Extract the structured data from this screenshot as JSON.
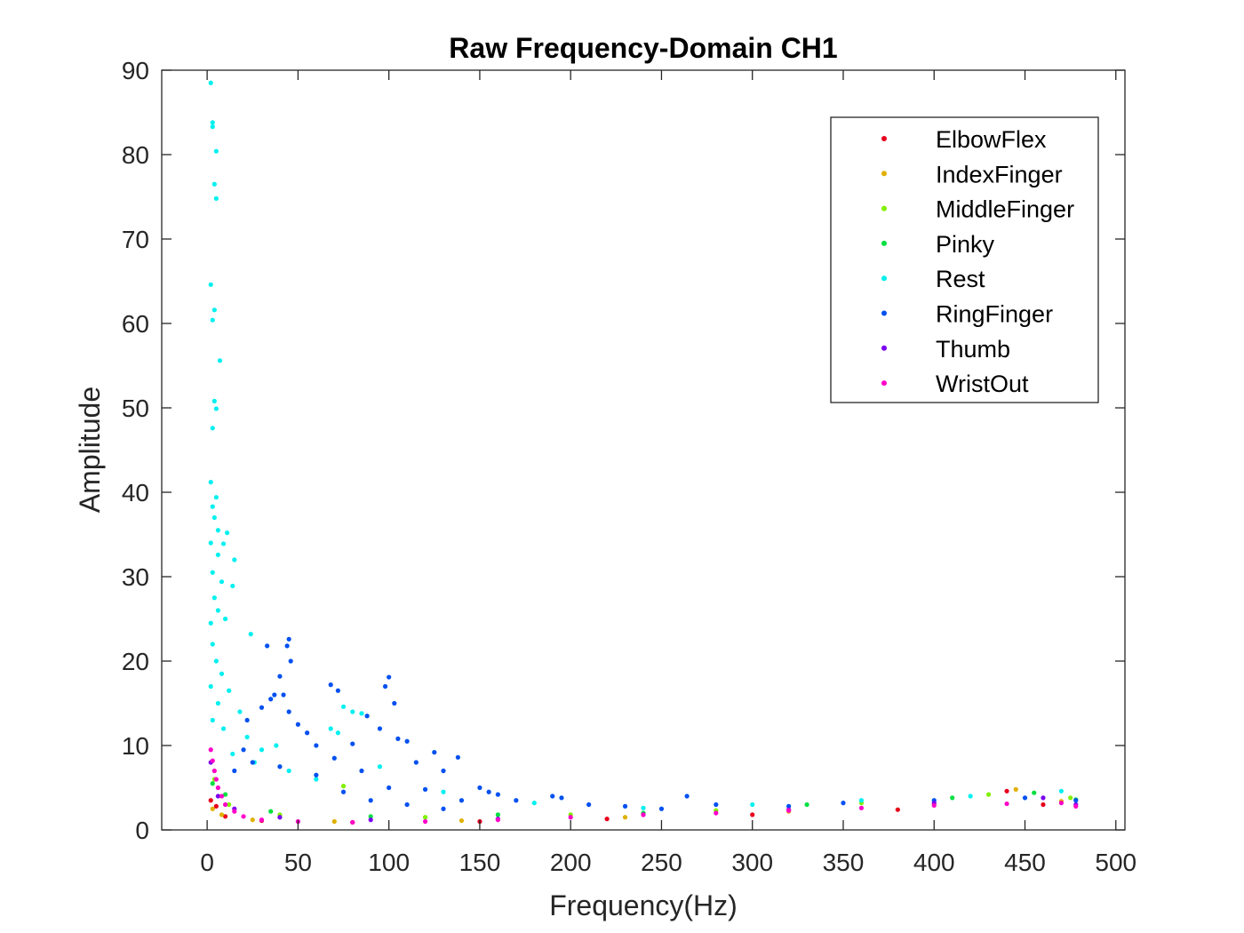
{
  "chart_data": {
    "type": "scatter",
    "title": "Raw Frequency-Domain CH1",
    "xlabel": "Frequency(Hz)",
    "ylabel": "Amplitude",
    "xlim": [
      -25,
      505
    ],
    "ylim": [
      0,
      90
    ],
    "xticks": [
      0,
      50,
      100,
      150,
      200,
      250,
      300,
      350,
      400,
      450,
      500
    ],
    "yticks": [
      0,
      10,
      20,
      30,
      40,
      50,
      60,
      70,
      80,
      90
    ],
    "xtick_labels": [
      "0",
      "50",
      "100",
      "150",
      "200",
      "250",
      "300",
      "350",
      "400",
      "450",
      "500"
    ],
    "ytick_labels": [
      "0",
      "10",
      "20",
      "30",
      "40",
      "50",
      "60",
      "70",
      "80",
      "90"
    ],
    "grid": false,
    "legend_position": "top-right",
    "series": [
      {
        "name": "ElbowFlex",
        "color": "#e8001c",
        "points": [
          [
            2,
            3.5
          ],
          [
            5,
            2.8
          ],
          [
            10,
            1.6
          ],
          [
            30,
            1.1
          ],
          [
            80,
            0.9
          ],
          [
            150,
            1.0
          ],
          [
            220,
            1.3
          ],
          [
            300,
            1.8
          ],
          [
            380,
            2.4
          ],
          [
            440,
            4.6
          ],
          [
            460,
            3.0
          ]
        ]
      },
      {
        "name": "IndexFinger",
        "color": "#e0b000",
        "points": [
          [
            3,
            2.5
          ],
          [
            8,
            1.8
          ],
          [
            25,
            1.2
          ],
          [
            70,
            1.0
          ],
          [
            140,
            1.1
          ],
          [
            230,
            1.5
          ],
          [
            320,
            2.2
          ],
          [
            400,
            3.0
          ],
          [
            445,
            4.8
          ],
          [
            470,
            3.4
          ]
        ]
      },
      {
        "name": "MiddleFinger",
        "color": "#80f000",
        "points": [
          [
            4,
            6.0
          ],
          [
            12,
            3.0
          ],
          [
            40,
            1.8
          ],
          [
            75,
            5.2
          ],
          [
            120,
            1.5
          ],
          [
            200,
            1.8
          ],
          [
            280,
            2.3
          ],
          [
            360,
            3.2
          ],
          [
            430,
            4.2
          ],
          [
            475,
            3.8
          ]
        ]
      },
      {
        "name": "Pinky",
        "color": "#00e040",
        "points": [
          [
            3,
            5.5
          ],
          [
            10,
            4.2
          ],
          [
            35,
            2.2
          ],
          [
            90,
            1.6
          ],
          [
            160,
            1.8
          ],
          [
            240,
            2.0
          ],
          [
            330,
            3.0
          ],
          [
            410,
            3.8
          ],
          [
            455,
            4.4
          ],
          [
            478,
            3.6
          ]
        ]
      },
      {
        "name": "Rest",
        "color": "#00f0f0",
        "points": [
          [
            2,
            88.5
          ],
          [
            3,
            83.8
          ],
          [
            3,
            83.3
          ],
          [
            5,
            80.4
          ],
          [
            4,
            76.5
          ],
          [
            5,
            74.8
          ],
          [
            2,
            64.6
          ],
          [
            4,
            61.6
          ],
          [
            3,
            60.4
          ],
          [
            7,
            55.6
          ],
          [
            4,
            50.8
          ],
          [
            5,
            49.9
          ],
          [
            3,
            47.6
          ],
          [
            2,
            41.2
          ],
          [
            5,
            39.4
          ],
          [
            3,
            38.3
          ],
          [
            4,
            37.0
          ],
          [
            6,
            35.5
          ],
          [
            11,
            35.2
          ],
          [
            2,
            34.0
          ],
          [
            9,
            33.9
          ],
          [
            6,
            32.6
          ],
          [
            15,
            32.0
          ],
          [
            3,
            30.5
          ],
          [
            8,
            29.4
          ],
          [
            14,
            28.9
          ],
          [
            4,
            27.5
          ],
          [
            6,
            26.0
          ],
          [
            2,
            24.5
          ],
          [
            10,
            25.0
          ],
          [
            3,
            22.0
          ],
          [
            5,
            20.0
          ],
          [
            8,
            18.5
          ],
          [
            2,
            17.0
          ],
          [
            12,
            16.5
          ],
          [
            6,
            15.0
          ],
          [
            18,
            14.0
          ],
          [
            3,
            13.0
          ],
          [
            9,
            12.0
          ],
          [
            24,
            23.2
          ],
          [
            22,
            11.0
          ],
          [
            30,
            9.5
          ],
          [
            38,
            10.0
          ],
          [
            14,
            9.0
          ],
          [
            26,
            8.0
          ],
          [
            45,
            7.0
          ],
          [
            60,
            6.0
          ],
          [
            68,
            12.0
          ],
          [
            72,
            11.5
          ],
          [
            75,
            14.6
          ],
          [
            80,
            14.0
          ],
          [
            85,
            13.8
          ],
          [
            95,
            7.5
          ],
          [
            130,
            4.5
          ],
          [
            180,
            3.2
          ],
          [
            240,
            2.6
          ],
          [
            300,
            3.0
          ],
          [
            360,
            3.5
          ],
          [
            420,
            4.0
          ],
          [
            470,
            4.6
          ]
        ]
      },
      {
        "name": "RingFinger",
        "color": "#0050f0",
        "points": [
          [
            45,
            22.6
          ],
          [
            44,
            21.8
          ],
          [
            33,
            21.8
          ],
          [
            46,
            20.0
          ],
          [
            40,
            18.2
          ],
          [
            68,
            17.2
          ],
          [
            72,
            16.5
          ],
          [
            100,
            18.1
          ],
          [
            98,
            17.0
          ],
          [
            37,
            16.0
          ],
          [
            42,
            16.0
          ],
          [
            35,
            15.5
          ],
          [
            103,
            15.0
          ],
          [
            30,
            14.5
          ],
          [
            45,
            14.0
          ],
          [
            88,
            13.5
          ],
          [
            22,
            13.0
          ],
          [
            50,
            12.5
          ],
          [
            95,
            12.0
          ],
          [
            105,
            10.8
          ],
          [
            110,
            10.5
          ],
          [
            80,
            10.2
          ],
          [
            125,
            9.2
          ],
          [
            55,
            11.5
          ],
          [
            60,
            10.0
          ],
          [
            138,
            8.6
          ],
          [
            115,
            8.0
          ],
          [
            70,
            8.5
          ],
          [
            85,
            7.0
          ],
          [
            130,
            7.0
          ],
          [
            20,
            9.5
          ],
          [
            25,
            8.0
          ],
          [
            15,
            7.0
          ],
          [
            150,
            5.0
          ],
          [
            155,
            4.5
          ],
          [
            160,
            4.2
          ],
          [
            170,
            3.5
          ],
          [
            190,
            4.0
          ],
          [
            195,
            3.8
          ],
          [
            210,
            3.0
          ],
          [
            230,
            2.8
          ],
          [
            264,
            4.0
          ],
          [
            250,
            2.5
          ],
          [
            280,
            3.0
          ],
          [
            320,
            2.8
          ],
          [
            350,
            3.2
          ],
          [
            400,
            3.5
          ],
          [
            450,
            3.8
          ],
          [
            478,
            3.5
          ],
          [
            100,
            5.0
          ],
          [
            120,
            4.8
          ],
          [
            140,
            3.5
          ],
          [
            60,
            6.5
          ],
          [
            40,
            7.5
          ],
          [
            75,
            4.5
          ],
          [
            90,
            3.5
          ],
          [
            110,
            3.0
          ],
          [
            130,
            2.5
          ]
        ]
      },
      {
        "name": "Thumb",
        "color": "#7a00f0",
        "points": [
          [
            2,
            8.0
          ],
          [
            6,
            4.0
          ],
          [
            15,
            2.5
          ],
          [
            40,
            1.5
          ],
          [
            90,
            1.2
          ],
          [
            160,
            1.3
          ],
          [
            240,
            1.8
          ],
          [
            320,
            2.4
          ],
          [
            400,
            3.2
          ],
          [
            460,
            3.8
          ],
          [
            478,
            3.0
          ]
        ]
      },
      {
        "name": "WristOut",
        "color": "#ff00c8",
        "points": [
          [
            2,
            9.5
          ],
          [
            3,
            8.2
          ],
          [
            4,
            7.0
          ],
          [
            5,
            6.0
          ],
          [
            6,
            5.0
          ],
          [
            8,
            4.0
          ],
          [
            10,
            3.0
          ],
          [
            15,
            2.2
          ],
          [
            20,
            1.6
          ],
          [
            30,
            1.2
          ],
          [
            50,
            1.0
          ],
          [
            80,
            0.9
          ],
          [
            120,
            1.0
          ],
          [
            160,
            1.2
          ],
          [
            200,
            1.5
          ],
          [
            240,
            1.8
          ],
          [
            280,
            2.0
          ],
          [
            320,
            2.3
          ],
          [
            360,
            2.6
          ],
          [
            400,
            2.9
          ],
          [
            440,
            3.1
          ],
          [
            470,
            3.2
          ],
          [
            478,
            2.8
          ]
        ]
      }
    ]
  }
}
